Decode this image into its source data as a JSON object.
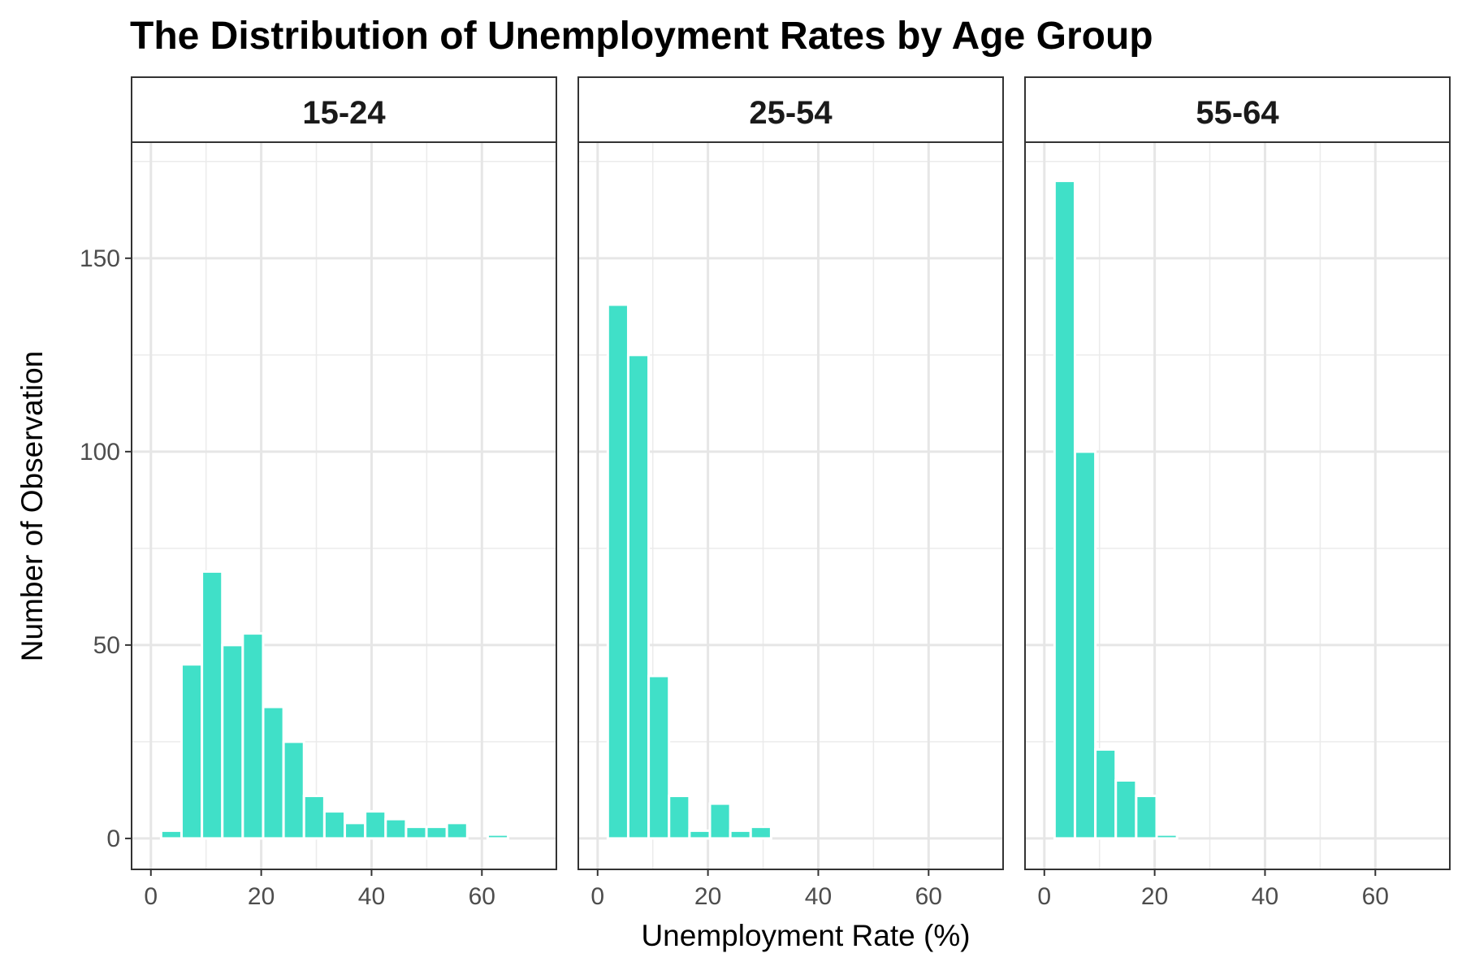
{
  "chart_data": {
    "type": "bar",
    "title": "The Distribution of Unemployment Rates by Age Group",
    "xlabel": "Unemployment Rate (%)",
    "ylabel": "Number of Observation",
    "xlim": [
      -3.5,
      73.5
    ],
    "ylim": [
      -8,
      180
    ],
    "xticks": [
      0,
      20,
      40,
      60
    ],
    "yticks": [
      0,
      50,
      100,
      150
    ],
    "bin_width": 3.7,
    "bar_color": "#40E0C8",
    "grid": true,
    "panels": [
      {
        "strip": "15-24",
        "bins": [
          {
            "x": 3.7,
            "count": 2
          },
          {
            "x": 7.4,
            "count": 45
          },
          {
            "x": 11.1,
            "count": 69
          },
          {
            "x": 14.8,
            "count": 50
          },
          {
            "x": 18.5,
            "count": 53
          },
          {
            "x": 22.2,
            "count": 34
          },
          {
            "x": 25.9,
            "count": 25
          },
          {
            "x": 29.6,
            "count": 11
          },
          {
            "x": 33.3,
            "count": 7
          },
          {
            "x": 37.0,
            "count": 4
          },
          {
            "x": 40.7,
            "count": 7
          },
          {
            "x": 44.4,
            "count": 5
          },
          {
            "x": 48.1,
            "count": 3
          },
          {
            "x": 51.8,
            "count": 3
          },
          {
            "x": 55.5,
            "count": 4
          },
          {
            "x": 59.2,
            "count": 0
          },
          {
            "x": 62.9,
            "count": 1
          },
          {
            "x": 66.6,
            "count": 0
          }
        ]
      },
      {
        "strip": "25-54",
        "bins": [
          {
            "x": 3.7,
            "count": 138
          },
          {
            "x": 7.4,
            "count": 125
          },
          {
            "x": 11.1,
            "count": 42
          },
          {
            "x": 14.8,
            "count": 11
          },
          {
            "x": 18.5,
            "count": 2
          },
          {
            "x": 22.2,
            "count": 9
          },
          {
            "x": 25.9,
            "count": 2
          },
          {
            "x": 29.6,
            "count": 3
          },
          {
            "x": 33.3,
            "count": 0
          },
          {
            "x": 37.0,
            "count": 0
          },
          {
            "x": 40.7,
            "count": 0
          },
          {
            "x": 44.4,
            "count": 0
          },
          {
            "x": 48.1,
            "count": 0
          },
          {
            "x": 51.8,
            "count": 0
          },
          {
            "x": 55.5,
            "count": 0
          },
          {
            "x": 59.2,
            "count": 0
          },
          {
            "x": 62.9,
            "count": 0
          },
          {
            "x": 66.6,
            "count": 0
          }
        ]
      },
      {
        "strip": "55-64",
        "bins": [
          {
            "x": 3.7,
            "count": 170
          },
          {
            "x": 7.4,
            "count": 100
          },
          {
            "x": 11.1,
            "count": 23
          },
          {
            "x": 14.8,
            "count": 15
          },
          {
            "x": 18.5,
            "count": 11
          },
          {
            "x": 22.2,
            "count": 1
          },
          {
            "x": 25.9,
            "count": 0
          },
          {
            "x": 29.6,
            "count": 0
          },
          {
            "x": 33.3,
            "count": 0
          },
          {
            "x": 37.0,
            "count": 0
          },
          {
            "x": 40.7,
            "count": 0
          },
          {
            "x": 44.4,
            "count": 0
          },
          {
            "x": 48.1,
            "count": 0
          },
          {
            "x": 51.8,
            "count": 0
          },
          {
            "x": 55.5,
            "count": 0
          },
          {
            "x": 59.2,
            "count": 0
          },
          {
            "x": 62.9,
            "count": 0
          },
          {
            "x": 66.6,
            "count": 0
          }
        ]
      }
    ]
  }
}
